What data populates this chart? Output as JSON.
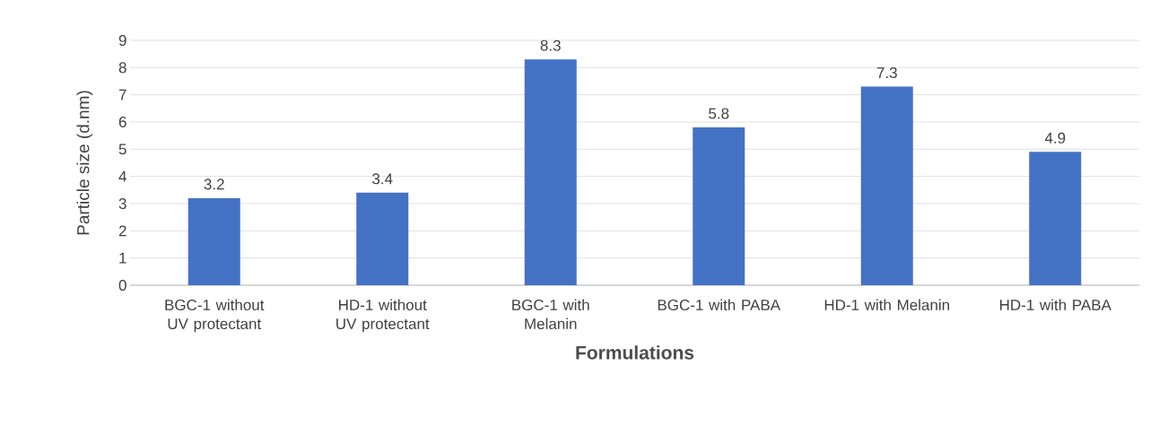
{
  "chart_data": {
    "type": "bar",
    "xlabel": "Formulations",
    "ylabel": "Particle size (d.nm)",
    "categories": [
      "BGC-1 without UV protectant",
      "HD-1 without UV protectant",
      "BGC-1 with Melanin",
      "BGC-1 with PABA",
      "HD-1 with Melanin",
      "HD-1 with PABA"
    ],
    "values": [
      3.2,
      3.4,
      8.3,
      5.8,
      7.3,
      4.9
    ],
    "color": "#4472c4",
    "ylim": [
      0,
      9
    ],
    "yticks": [
      0,
      1,
      2,
      3,
      4,
      5,
      6,
      7,
      8,
      9
    ],
    "grid": "y",
    "data_labels": true
  }
}
